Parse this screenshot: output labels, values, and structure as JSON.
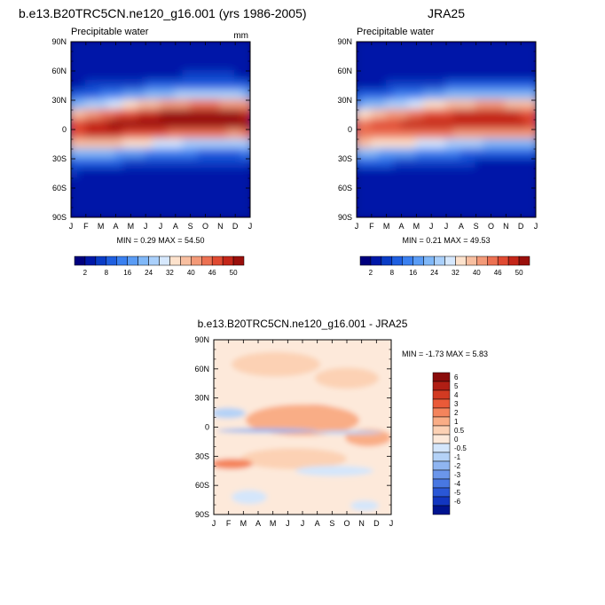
{
  "panels": [
    {
      "title": "b.e13.B20TRC5CN.ne120_g16.001 (yrs 1986-2005)",
      "variable": "Precipitable water",
      "units": "mm",
      "min_max": "MIN =   0.29 MAX =  54.50"
    },
    {
      "title": "JRA25",
      "variable": "Precipitable water",
      "units": "",
      "min_max": "MIN =   0.21 MAX =  49.53"
    },
    {
      "title": "b.e13.B20TRC5CN.ne120_g16.001 - JRA25",
      "variable": "",
      "units": "",
      "min_max": "MIN =  -1.73 MAX =   5.83"
    }
  ],
  "chart_data": [
    {
      "type": "heatmap",
      "title": "b.e13.B20TRC5CN.ne120_g16.001 (yrs 1986-2005)",
      "xlabel": "",
      "ylabel": "",
      "x": [
        "J",
        "F",
        "M",
        "A",
        "M",
        "J",
        "J",
        "A",
        "S",
        "O",
        "N",
        "D",
        "J"
      ],
      "yticks": [
        "90N",
        "60N",
        "30N",
        "0",
        "30S",
        "60S",
        "90S"
      ],
      "ylim": [
        -90,
        90
      ],
      "min": 0.29,
      "max": 54.5,
      "colorbar_levels": [
        2,
        5,
        8,
        12,
        16,
        20,
        24,
        28,
        32,
        36,
        40,
        43,
        46,
        48,
        50
      ],
      "colorbar_labels": [
        "2",
        "8",
        "16",
        "24",
        "32",
        "40",
        "46",
        "50"
      ]
    },
    {
      "type": "heatmap",
      "title": "JRA25",
      "xlabel": "",
      "ylabel": "",
      "x": [
        "J",
        "F",
        "M",
        "A",
        "M",
        "J",
        "J",
        "A",
        "S",
        "O",
        "N",
        "D",
        "J"
      ],
      "yticks": [
        "90N",
        "60N",
        "30N",
        "0",
        "30S",
        "60S",
        "90S"
      ],
      "ylim": [
        -90,
        90
      ],
      "min": 0.21,
      "max": 49.53,
      "colorbar_levels": [
        2,
        5,
        8,
        12,
        16,
        20,
        24,
        28,
        32,
        36,
        40,
        43,
        46,
        48,
        50
      ],
      "colorbar_labels": [
        "2",
        "8",
        "16",
        "24",
        "32",
        "40",
        "46",
        "50"
      ]
    },
    {
      "type": "heatmap",
      "title": "b.e13.B20TRC5CN.ne120_g16.001 - JRA25",
      "xlabel": "",
      "ylabel": "",
      "x": [
        "J",
        "F",
        "M",
        "A",
        "M",
        "J",
        "J",
        "A",
        "S",
        "O",
        "N",
        "D",
        "J"
      ],
      "yticks": [
        "90N",
        "60N",
        "30N",
        "0",
        "30S",
        "60S",
        "90S"
      ],
      "ylim": [
        -90,
        90
      ],
      "min": -1.73,
      "max": 5.83,
      "colorbar_levels": [
        6,
        5,
        4,
        3,
        2,
        1,
        0.5,
        0,
        -0.5,
        -1,
        -2,
        -3,
        -4,
        -5,
        -6
      ],
      "colorbar_labels": [
        "6",
        "5",
        "4",
        "3",
        "2",
        "1",
        "0.5",
        "0",
        "-0.5",
        "-1",
        "-2",
        "-3",
        "-4",
        "-5",
        "-6"
      ]
    }
  ],
  "colors": {
    "abs_palette": [
      "#00007e",
      "#0018a8",
      "#0a3cc6",
      "#1f5fe0",
      "#3a80f0",
      "#5a9cf5",
      "#80b8f8",
      "#aad0fb",
      "#d6e8fd",
      "#fde2cc",
      "#f8bfa0",
      "#f39a78",
      "#ec7152",
      "#e04a32",
      "#c42619",
      "#9a0f0b"
    ],
    "diff_palette": [
      "#8a0c0a",
      "#b01e14",
      "#d23a22",
      "#ea5a38",
      "#f4845c",
      "#f9ad86",
      "#fcd1b4",
      "#fde9da",
      "#d4e6fb",
      "#b4d2f7",
      "#8fb5f1",
      "#6b96eb",
      "#4877e2",
      "#2a57d6",
      "#1236c0",
      "#00138f"
    ]
  }
}
